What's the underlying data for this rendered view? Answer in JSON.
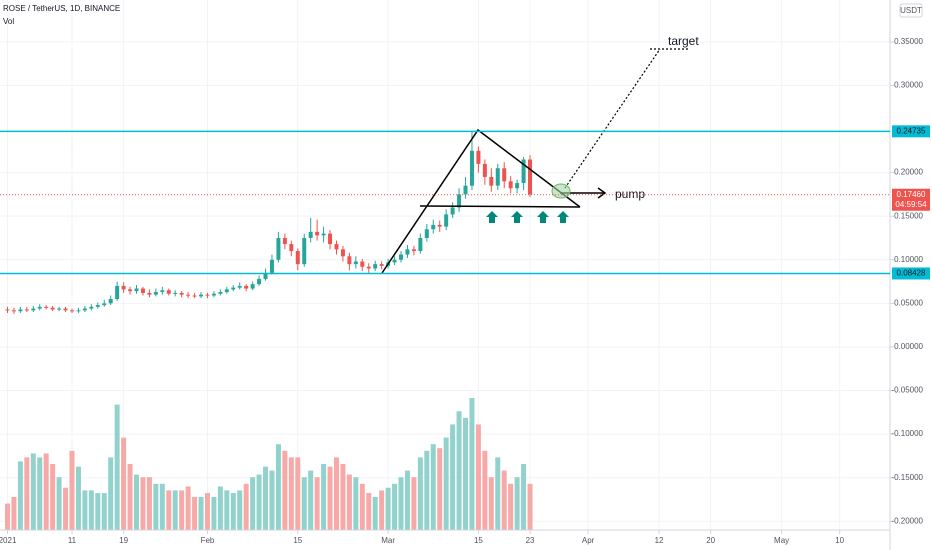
{
  "chart_data": {
    "type": "candlestick",
    "title": "ROSE / TetherUS, 1D, BINANCE",
    "volume_label": "Vol",
    "currency": "USDT",
    "open": [
      0.043,
      0.042,
      0.041,
      0.043,
      0.042,
      0.044,
      0.046,
      0.045,
      0.043,
      0.044,
      0.042,
      0.041,
      0.042,
      0.044,
      0.046,
      0.048,
      0.05,
      0.055,
      0.07,
      0.066,
      0.064,
      0.067,
      0.062,
      0.06,
      0.063,
      0.065,
      0.061,
      0.062,
      0.06,
      0.059,
      0.058,
      0.06,
      0.059,
      0.061,
      0.063,
      0.066,
      0.068,
      0.07,
      0.067,
      0.072,
      0.078,
      0.085,
      0.1,
      0.125,
      0.118,
      0.11,
      0.095,
      0.125,
      0.132,
      0.128,
      0.13,
      0.118,
      0.112,
      0.104,
      0.095,
      0.098,
      0.092,
      0.09,
      0.095,
      0.093,
      0.097,
      0.1,
      0.106,
      0.112,
      0.11,
      0.125,
      0.135,
      0.14,
      0.138,
      0.152,
      0.16,
      0.175,
      0.185,
      0.225,
      0.21,
      0.195,
      0.185,
      0.205,
      0.19,
      0.182,
      0.188,
      0.215
    ],
    "high": [
      0.046,
      0.045,
      0.046,
      0.046,
      0.047,
      0.049,
      0.048,
      0.047,
      0.046,
      0.046,
      0.044,
      0.045,
      0.047,
      0.049,
      0.051,
      0.054,
      0.059,
      0.075,
      0.074,
      0.069,
      0.071,
      0.069,
      0.066,
      0.067,
      0.069,
      0.067,
      0.065,
      0.064,
      0.063,
      0.062,
      0.063,
      0.062,
      0.064,
      0.066,
      0.069,
      0.071,
      0.074,
      0.072,
      0.075,
      0.082,
      0.09,
      0.106,
      0.132,
      0.13,
      0.122,
      0.113,
      0.13,
      0.148,
      0.146,
      0.138,
      0.134,
      0.122,
      0.116,
      0.108,
      0.104,
      0.101,
      0.096,
      0.099,
      0.098,
      0.101,
      0.104,
      0.11,
      0.117,
      0.116,
      0.13,
      0.141,
      0.146,
      0.145,
      0.158,
      0.166,
      0.182,
      0.195,
      0.248,
      0.23,
      0.215,
      0.205,
      0.21,
      0.212,
      0.196,
      0.192,
      0.218,
      0.22
    ],
    "low": [
      0.039,
      0.038,
      0.039,
      0.04,
      0.04,
      0.042,
      0.043,
      0.041,
      0.041,
      0.04,
      0.039,
      0.039,
      0.04,
      0.042,
      0.044,
      0.046,
      0.048,
      0.053,
      0.062,
      0.06,
      0.061,
      0.059,
      0.057,
      0.058,
      0.06,
      0.059,
      0.058,
      0.057,
      0.056,
      0.056,
      0.056,
      0.056,
      0.057,
      0.059,
      0.061,
      0.064,
      0.066,
      0.064,
      0.065,
      0.07,
      0.076,
      0.083,
      0.097,
      0.112,
      0.104,
      0.088,
      0.092,
      0.12,
      0.122,
      0.12,
      0.112,
      0.106,
      0.098,
      0.088,
      0.09,
      0.087,
      0.085,
      0.087,
      0.089,
      0.09,
      0.094,
      0.097,
      0.102,
      0.105,
      0.107,
      0.121,
      0.13,
      0.132,
      0.134,
      0.148,
      0.155,
      0.17,
      0.18,
      0.2,
      0.186,
      0.178,
      0.18,
      0.182,
      0.176,
      0.176,
      0.18,
      0.172
    ],
    "close": [
      0.042,
      0.041,
      0.043,
      0.042,
      0.044,
      0.046,
      0.045,
      0.043,
      0.044,
      0.042,
      0.041,
      0.042,
      0.044,
      0.046,
      0.048,
      0.05,
      0.055,
      0.07,
      0.066,
      0.064,
      0.067,
      0.062,
      0.06,
      0.063,
      0.065,
      0.061,
      0.062,
      0.06,
      0.059,
      0.058,
      0.06,
      0.059,
      0.061,
      0.063,
      0.066,
      0.068,
      0.07,
      0.067,
      0.072,
      0.078,
      0.085,
      0.1,
      0.125,
      0.118,
      0.11,
      0.095,
      0.125,
      0.132,
      0.128,
      0.13,
      0.118,
      0.112,
      0.104,
      0.095,
      0.098,
      0.092,
      0.09,
      0.095,
      0.093,
      0.097,
      0.1,
      0.106,
      0.112,
      0.11,
      0.125,
      0.135,
      0.14,
      0.138,
      0.152,
      0.16,
      0.175,
      0.185,
      0.225,
      0.21,
      0.195,
      0.185,
      0.205,
      0.19,
      0.182,
      0.188,
      0.215,
      0.175
    ],
    "volume": [
      20,
      25,
      52,
      55,
      58,
      55,
      58,
      50,
      40,
      32,
      60,
      48,
      30,
      30,
      28,
      28,
      55,
      95,
      70,
      50,
      42,
      40,
      40,
      35,
      35,
      30,
      30,
      30,
      33,
      25,
      25,
      28,
      25,
      33,
      30,
      28,
      30,
      35,
      40,
      42,
      48,
      45,
      65,
      60,
      55,
      55,
      40,
      45,
      40,
      50,
      48,
      55,
      50,
      42,
      40,
      35,
      28,
      25,
      30,
      32,
      35,
      40,
      45,
      40,
      55,
      60,
      65,
      62,
      70,
      80,
      90,
      85,
      100,
      80,
      60,
      40,
      55,
      45,
      35,
      40,
      50,
      35
    ],
    "up_color": "#26a69a",
    "down_color": "#ef5350",
    "up_volume_color": "#92d2cc",
    "down_volume_color": "#f7a9a7",
    "level_color": "#00bcd4",
    "levels": [
      0.24735,
      0.08428
    ],
    "last_price": {
      "value": 0.1746,
      "label": "0.17460"
    },
    "countdown": "04:59:54",
    "annotations": [
      "target",
      "pump"
    ],
    "xlim": [
      -1.16,
      136.8
    ],
    "ylim": [
      -0.21,
      0.398
    ],
    "xticks": [
      {
        "value": 0,
        "label": "2021"
      },
      {
        "value": 10,
        "label": "11"
      },
      {
        "value": 18,
        "label": "19"
      },
      {
        "value": 31,
        "label": "Feb"
      },
      {
        "value": 45,
        "label": "15"
      },
      {
        "value": 59,
        "label": "Mar"
      },
      {
        "value": 73,
        "label": "15"
      },
      {
        "value": 81,
        "label": "23"
      },
      {
        "value": 90,
        "label": "Apr"
      },
      {
        "value": 101,
        "label": "12"
      },
      {
        "value": 109,
        "label": "20"
      },
      {
        "value": 120,
        "label": "May"
      },
      {
        "value": 129,
        "label": "10"
      }
    ],
    "yticks": [
      {
        "value": 0.35,
        "label": "0.35000"
      },
      {
        "value": 0.3,
        "label": "0.30000"
      },
      {
        "value": 0.2,
        "label": "0.20000"
      },
      {
        "value": 0.15,
        "label": "0.15000"
      },
      {
        "value": 0.1,
        "label": "0.10000"
      },
      {
        "value": 0.05,
        "label": "0.05000"
      },
      {
        "value": 0,
        "label": "0.00000"
      },
      {
        "value": -0.05,
        "label": "-0.05000"
      },
      {
        "value": -0.1,
        "label": "-0.10000"
      },
      {
        "value": -0.15,
        "label": "-0.15000"
      },
      {
        "value": -0.2,
        "label": "-0.20000"
      }
    ],
    "grid": true
  }
}
